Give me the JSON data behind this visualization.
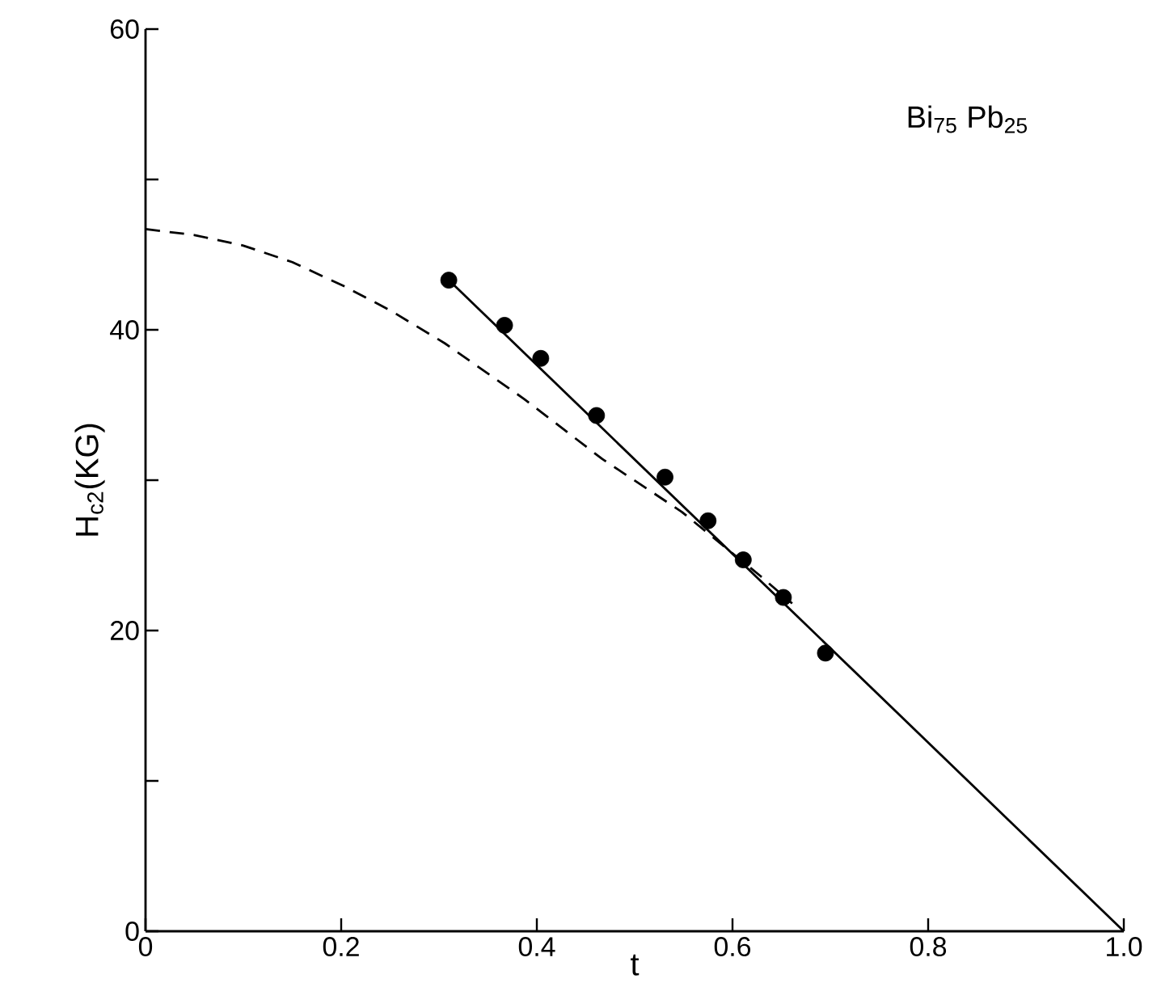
{
  "chart_data": {
    "type": "line",
    "xlabel": "t",
    "ylabel": "H$_{c2}$(KG)",
    "annotations": [
      "Bi$_{75}$ Pb$_{25}$"
    ],
    "xlim": [
      0,
      1.0
    ],
    "ylim": [
      0,
      60
    ],
    "xticks": [
      0,
      0.2,
      0.4,
      0.6,
      0.8,
      {
        "value": 1.0,
        "label": "1.0"
      }
    ],
    "yticks": [
      0,
      {
        "value": 10,
        "label": null
      },
      20,
      {
        "value": 30,
        "label": null
      },
      40,
      {
        "value": 50,
        "label": null
      },
      60
    ],
    "grid": false,
    "marker": "circle",
    "series": [
      {
        "type": "scatter",
        "color": "#000000",
        "x": [
          0.31,
          0.367,
          0.404,
          0.461,
          0.531,
          0.575,
          0.611,
          0.652,
          0.695
        ],
        "values": [
          43.3,
          40.3,
          38.1,
          34.3,
          30.2,
          27.3,
          24.7,
          22.2,
          18.5
        ]
      },
      {
        "color": "#000000",
        "line_style": "solid",
        "marker": "none",
        "x": [
          0.31,
          1.0
        ],
        "values": [
          43.3,
          0
        ]
      },
      {
        "color": "#000000",
        "line_style": "dashed",
        "marker": "none",
        "x": [
          0,
          0.05,
          0.1,
          0.15,
          0.203,
          0.25,
          0.306,
          0.387,
          0.467,
          0.548,
          0.629,
          0.661
        ],
        "values": [
          46.7,
          46.3,
          45.6,
          44.5,
          42.9,
          41.3,
          39.1,
          35.4,
          31.4,
          27.9,
          23.6,
          21.8
        ]
      }
    ]
  }
}
